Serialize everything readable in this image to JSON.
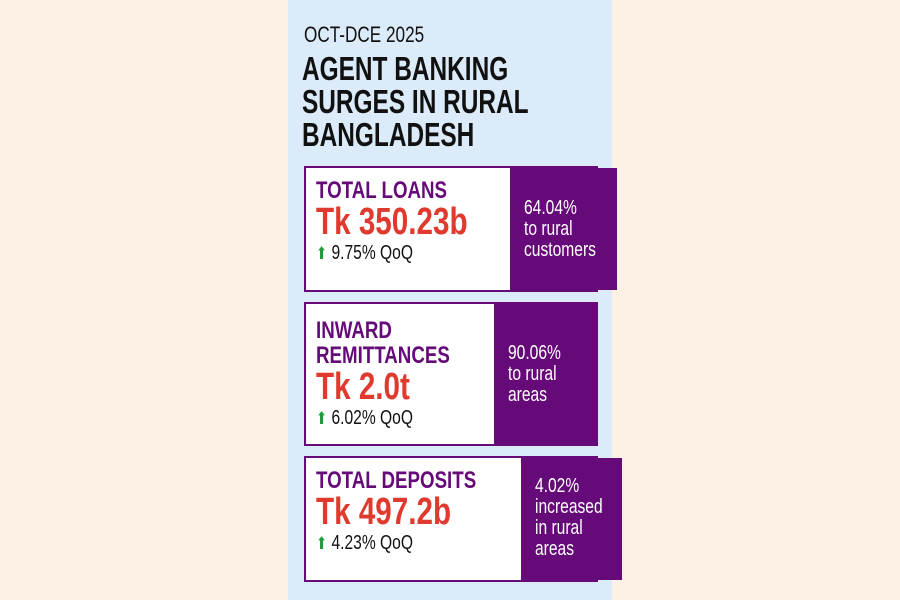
{
  "period": "OCT-DCE 2025",
  "title": [
    "AGENT BANKING",
    "SURGES IN RURAL",
    "BANGLADESH"
  ],
  "colors": {
    "purple": "#650a78",
    "red": "#e03a2e",
    "green": "#1e9a3c",
    "panel": "#dcebf9"
  },
  "cards": [
    {
      "label": [
        "TOTAL LOANS"
      ],
      "value": "Tk 350.23b",
      "change": "9.75% QoQ",
      "note": [
        "64.04%",
        "to rural",
        "customers"
      ]
    },
    {
      "label": [
        "INWARD",
        "REMITTANCES"
      ],
      "value": "Tk 2.0t",
      "change": "6.02% QoQ",
      "note": [
        "90.06%",
        "to rural",
        "areas"
      ]
    },
    {
      "label": [
        "TOTAL DEPOSITS"
      ],
      "value": "Tk 497.2b",
      "change": "4.23% QoQ",
      "note": [
        "4.02%",
        "increased",
        "in rural",
        "areas"
      ]
    }
  ]
}
